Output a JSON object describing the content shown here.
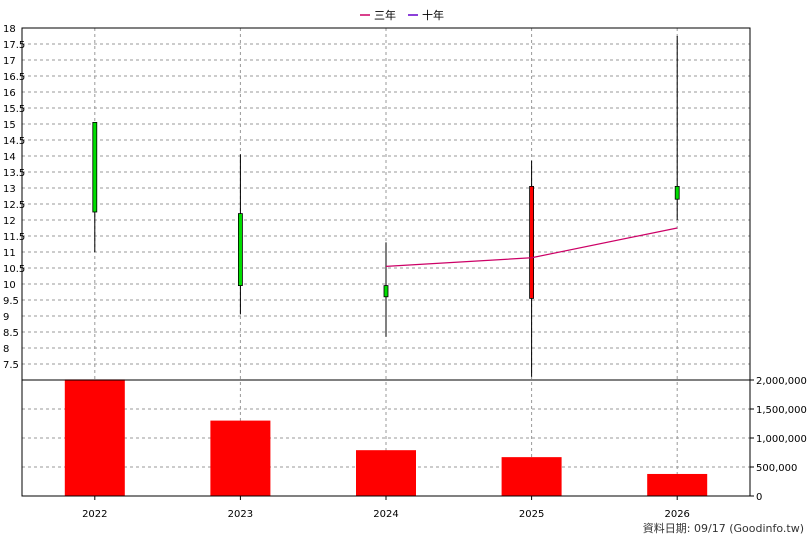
{
  "chart_data": {
    "type": "candlestick+bar",
    "legend": [
      {
        "name": "三年",
        "color": "#cc0066"
      },
      {
        "name": "十年",
        "color": "#6600cc"
      }
    ],
    "categories": [
      "2022",
      "2023",
      "2024",
      "2025",
      "2026"
    ],
    "price_axis": {
      "ticks": [
        "7.5",
        "8",
        "8.5",
        "9",
        "9.5",
        "10",
        "10.5",
        "11",
        "11.5",
        "12",
        "12.5",
        "13",
        "13.5",
        "14",
        "14.5",
        "15",
        "15.5",
        "16",
        "16.5",
        "17",
        "17.5",
        "18"
      ],
      "ylim": [
        7,
        18
      ]
    },
    "candles": [
      {
        "x": "2022",
        "open": 12.25,
        "close": 15.05,
        "high": 15.05,
        "low": 11.0,
        "color": "#00dd00"
      },
      {
        "x": "2023",
        "open": 9.95,
        "close": 12.2,
        "high": 14.05,
        "low": 9.05,
        "color": "#00dd00"
      },
      {
        "x": "2024",
        "open": 9.6,
        "close": 9.95,
        "high": 11.3,
        "low": 8.35,
        "color": "#00dd00"
      },
      {
        "x": "2025",
        "open": 13.05,
        "close": 9.55,
        "high": 13.85,
        "low": 7.1,
        "color": "#ff0000"
      },
      {
        "x": "2026",
        "open": 12.65,
        "close": 13.05,
        "high": 17.75,
        "low": 12.0,
        "color": "#00dd00"
      }
    ],
    "series": [
      {
        "name": "三年",
        "x": [
          "2024",
          "2025",
          "2026"
        ],
        "values": [
          10.55,
          10.82,
          11.75
        ],
        "color": "#cc0066"
      }
    ],
    "volume_axis": {
      "ticks": [
        "0",
        "500,000",
        "1,000,000",
        "1,500,000",
        "2,000,000"
      ],
      "ylim": [
        0,
        2000000
      ]
    },
    "volume": [
      {
        "x": "2022",
        "value": 2010000
      },
      {
        "x": "2023",
        "value": 1300000
      },
      {
        "x": "2024",
        "value": 790000
      },
      {
        "x": "2025",
        "value": 670000
      },
      {
        "x": "2026",
        "value": 380000
      }
    ],
    "bar_color": "#ff0000",
    "grid": true
  },
  "credit": "資料日期: 09/17  (Goodinfo.tw)"
}
